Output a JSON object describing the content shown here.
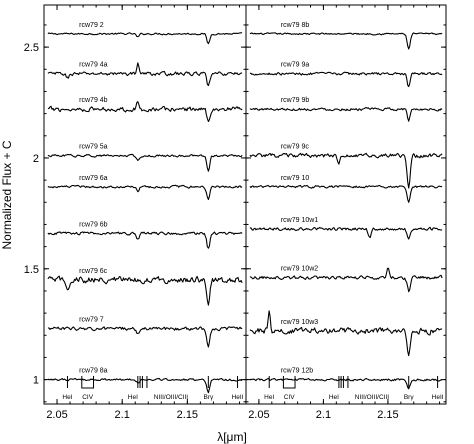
{
  "chart_data": {
    "type": "line",
    "xlabel": "λ[μm]",
    "ylabel": "Normalized Flux + C",
    "xlim": [
      2.04,
      2.195
    ],
    "ylim": [
      0.89,
      2.69
    ],
    "xticks": [
      2.05,
      2.1,
      2.15
    ],
    "xtick_labels": [
      "2.05",
      "2.1",
      "2.15"
    ],
    "yticks": [
      1,
      1.5,
      2,
      2.5
    ],
    "ytick_labels": [
      "1",
      "1.5",
      "2",
      "2.5"
    ],
    "grid": false,
    "legend": "none",
    "line_ids": [
      {
        "label": "HeI",
        "x": [
          2.058
        ]
      },
      {
        "label": "CIV",
        "x": [
          2.069,
          2.078
        ]
      },
      {
        "label": "HeI",
        "x": [
          2.112,
          2.1137
        ]
      },
      {
        "label": "NIII/OIII/CIII",
        "x": [
          2.1155,
          2.119
        ]
      },
      {
        "label": "Brγ",
        "x": [
          2.1661
        ]
      },
      {
        "label": "HeII",
        "x": [
          2.1885
        ]
      }
    ],
    "panels": [
      {
        "name": "left",
        "spectra": [
          {
            "name": "rcw79 2",
            "offset": 2.56,
            "noise": 0.006,
            "absorptions": [
              [
                2.1661,
                0.045
              ],
              [
                2.112,
                0.015
              ]
            ]
          },
          {
            "name": "rcw79 4a",
            "offset": 2.38,
            "noise": 0.012,
            "absorptions": [
              [
                2.1661,
                0.06
              ],
              [
                2.058,
                0.02
              ]
            ],
            "emissions": [
              [
                2.112,
                0.05
              ]
            ]
          },
          {
            "name": "rcw79 4b",
            "offset": 2.22,
            "noise": 0.016,
            "absorptions": [
              [
                2.1661,
                0.05
              ]
            ],
            "emissions": [
              [
                2.112,
                0.03
              ]
            ]
          },
          {
            "name": "rcw79 5a",
            "offset": 2.01,
            "noise": 0.008,
            "absorptions": [
              [
                2.1661,
                0.07
              ],
              [
                2.112,
                0.02
              ]
            ]
          },
          {
            "name": "rcw79 6a",
            "offset": 1.87,
            "noise": 0.008,
            "absorptions": [
              [
                2.1661,
                0.06
              ],
              [
                2.112,
                0.02
              ]
            ]
          },
          {
            "name": "rcw79 6b",
            "offset": 1.66,
            "noise": 0.01,
            "absorptions": [
              [
                2.1661,
                0.07
              ],
              [
                2.112,
                0.03
              ]
            ]
          },
          {
            "name": "rcw79 6c",
            "offset": 1.45,
            "noise": 0.022,
            "absorptions": [
              [
                2.1661,
                0.1
              ],
              [
                2.058,
                0.04
              ]
            ]
          },
          {
            "name": "rcw79 7",
            "offset": 1.23,
            "noise": 0.012,
            "absorptions": [
              [
                2.1661,
                0.08
              ],
              [
                2.112,
                0.02
              ]
            ]
          },
          {
            "name": "rcw79 8a",
            "offset": 1.0,
            "noise": 0.007,
            "absorptions": [
              [
                2.1661,
                0.06
              ],
              [
                2.112,
                0.015
              ]
            ]
          }
        ]
      },
      {
        "name": "right",
        "spectra": [
          {
            "name": "rcw79 8b",
            "offset": 2.56,
            "noise": 0.006,
            "absorptions": [
              [
                2.1661,
                0.07
              ]
            ]
          },
          {
            "name": "rcw79 9a",
            "offset": 2.38,
            "noise": 0.009,
            "absorptions": [
              [
                2.1661,
                0.06
              ]
            ]
          },
          {
            "name": "rcw79 9b",
            "offset": 2.22,
            "noise": 0.009,
            "absorptions": [
              [
                2.1661,
                0.05
              ]
            ]
          },
          {
            "name": "rcw79 9c",
            "offset": 2.01,
            "noise": 0.014,
            "absorptions": [
              [
                2.1661,
                0.14
              ],
              [
                2.112,
                0.03
              ]
            ]
          },
          {
            "name": "rcw79 10",
            "offset": 1.87,
            "noise": 0.008,
            "absorptions": [
              [
                2.1661,
                0.07
              ]
            ]
          },
          {
            "name": "rcw79 10w1",
            "offset": 1.68,
            "noise": 0.01,
            "absorptions": [
              [
                2.1661,
                0.05
              ],
              [
                2.136,
                0.04
              ]
            ]
          },
          {
            "name": "rcw79 10w2",
            "offset": 1.46,
            "noise": 0.012,
            "absorptions": [
              [
                2.1661,
                0.06
              ]
            ],
            "emissions": [
              [
                2.15,
                0.04
              ]
            ]
          },
          {
            "name": "rcw79 10w3",
            "offset": 1.22,
            "noise": 0.02,
            "absorptions": [
              [
                2.1661,
                0.1
              ]
            ],
            "emissions": [
              [
                2.058,
                0.08
              ]
            ]
          },
          {
            "name": "rcw79 12b",
            "offset": 1.0,
            "noise": 0.008,
            "absorptions": [
              [
                2.1661,
                0.04
              ]
            ]
          }
        ]
      }
    ]
  }
}
